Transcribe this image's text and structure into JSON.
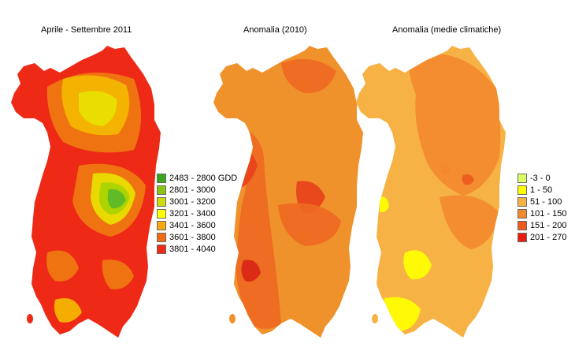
{
  "maps": [
    {
      "title": "Aprile - Settembre 2011",
      "base_color": "#ee2a16",
      "overlays": [
        "#f07a12",
        "#f5b800",
        "#e8e200",
        "#a8d400",
        "#5ab82a"
      ],
      "legend": [
        {
          "label": "2483 - 2800 GDD",
          "color": "#3aa61e"
        },
        {
          "label": "2801 - 3000",
          "color": "#8cc414"
        },
        {
          "label": "3001 - 3200",
          "color": "#cddc0a"
        },
        {
          "label": "3201 - 3400",
          "color": "#ffff00"
        },
        {
          "label": "3401 - 3600",
          "color": "#f5a90f"
        },
        {
          "label": "3601 - 3800",
          "color": "#f06a14"
        },
        {
          "label": "3801 - 4040",
          "color": "#ee2a16"
        }
      ]
    },
    {
      "title": "Anomalia (2010)",
      "base_color": "#f0922c",
      "overlays": [
        "#ee6a22",
        "#e8421c",
        "#d92616"
      ]
    },
    {
      "title": "Anomalia (medie climatiche)",
      "base_color": "#f7b245",
      "overlays": [
        "#f28a2e",
        "#ee5a1e",
        "#ffff00"
      ],
      "legend": [
        {
          "label": "-3 - 0",
          "color": "#ddff66"
        },
        {
          "label": "1 - 50",
          "color": "#ffff00"
        },
        {
          "label": "51 - 100",
          "color": "#f7b245"
        },
        {
          "label": "101 - 150",
          "color": "#f28a2e"
        },
        {
          "label": "151 - 200",
          "color": "#ee5a1e"
        },
        {
          "label": "201 - 270",
          "color": "#e81c10"
        }
      ]
    }
  ]
}
